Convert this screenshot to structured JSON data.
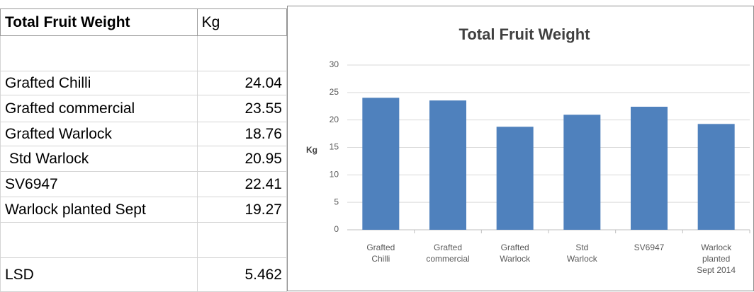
{
  "table": {
    "header": [
      "Total Fruit Weight",
      "Kg"
    ],
    "rows": [
      [
        "",
        ""
      ],
      [
        "Grafted Chilli",
        "24.04"
      ],
      [
        "Grafted commercial",
        "23.55"
      ],
      [
        "Grafted Warlock",
        "18.76"
      ],
      [
        " Std Warlock",
        "20.95"
      ],
      [
        "SV6947",
        "22.41"
      ],
      [
        "Warlock planted Sept",
        "19.27"
      ],
      [
        "",
        ""
      ],
      [
        "LSD",
        "5.462"
      ]
    ]
  },
  "chart_data": {
    "type": "bar",
    "title": "Total Fruit Weight",
    "y_label": "Kg",
    "categories": [
      "Grafted\nChilli",
      "Grafted\ncommercial",
      "Grafted\nWarlock",
      "Std\nWarlock",
      "SV6947",
      "Warlock\nplanted\nSept 2014"
    ],
    "values": [
      24.04,
      23.55,
      18.76,
      20.95,
      22.41,
      19.27
    ],
    "color": "#4f81bd",
    "ylim": [
      0,
      30
    ],
    "yticks": [
      0,
      5,
      10,
      15,
      20,
      25,
      30
    ],
    "grid": true
  }
}
